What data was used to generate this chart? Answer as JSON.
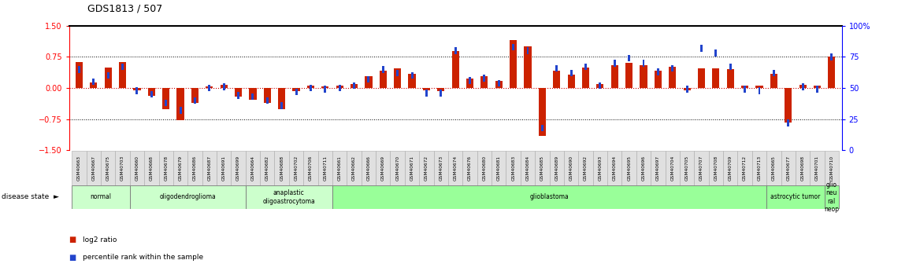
{
  "title": "GDS1813 / 507",
  "samples": [
    "GSM40663",
    "GSM40667",
    "GSM40675",
    "GSM40703",
    "GSM40660",
    "GSM40668",
    "GSM40678",
    "GSM40679",
    "GSM40686",
    "GSM40687",
    "GSM40691",
    "GSM40699",
    "GSM40664",
    "GSM40682",
    "GSM40688",
    "GSM40702",
    "GSM40706",
    "GSM40711",
    "GSM40661",
    "GSM40662",
    "GSM40666",
    "GSM40669",
    "GSM40670",
    "GSM40671",
    "GSM40672",
    "GSM40673",
    "GSM40674",
    "GSM40676",
    "GSM40680",
    "GSM40681",
    "GSM40683",
    "GSM40684",
    "GSM40685",
    "GSM40689",
    "GSM40690",
    "GSM40692",
    "GSM40693",
    "GSM40694",
    "GSM40695",
    "GSM40696",
    "GSM40697",
    "GSM40704",
    "GSM40705",
    "GSM40707",
    "GSM40708",
    "GSM40709",
    "GSM40712",
    "GSM40713",
    "GSM40665",
    "GSM40677",
    "GSM40698",
    "GSM40701",
    "GSM40710"
  ],
  "log2_ratio": [
    0.62,
    0.13,
    0.5,
    0.63,
    -0.05,
    -0.18,
    -0.5,
    -0.77,
    -0.35,
    0.04,
    0.08,
    -0.2,
    -0.28,
    -0.35,
    -0.5,
    -0.08,
    0.05,
    0.04,
    0.05,
    0.1,
    0.28,
    0.42,
    0.48,
    0.35,
    -0.05,
    -0.08,
    0.9,
    0.22,
    0.28,
    0.18,
    1.15,
    1.0,
    -1.15,
    0.42,
    0.32,
    0.5,
    0.1,
    0.55,
    0.6,
    0.55,
    0.42,
    0.52,
    -0.05,
    0.48,
    0.48,
    0.45,
    0.05,
    0.05,
    0.35,
    -0.82,
    0.08,
    0.05,
    0.75
  ],
  "percentile": [
    65,
    55,
    60,
    67,
    48,
    45,
    38,
    32,
    40,
    50,
    51,
    44,
    43,
    40,
    36,
    47,
    50,
    49,
    50,
    52,
    57,
    65,
    62,
    60,
    46,
    46,
    80,
    56,
    58,
    54,
    83,
    80,
    18,
    66,
    62,
    67,
    52,
    70,
    74,
    70,
    63,
    66,
    49,
    82,
    78,
    67,
    49,
    48,
    62,
    22,
    51,
    49,
    75
  ],
  "disease_groups": [
    {
      "label": "normal",
      "start": 0,
      "end": 4,
      "color": "#ccffcc"
    },
    {
      "label": "oligodendroglioma",
      "start": 4,
      "end": 12,
      "color": "#ccffcc"
    },
    {
      "label": "anaplastic\noligoastrocytoma",
      "start": 12,
      "end": 18,
      "color": "#ccffcc"
    },
    {
      "label": "glioblastoma",
      "start": 18,
      "end": 48,
      "color": "#99ff99"
    },
    {
      "label": "astrocytic tumor",
      "start": 48,
      "end": 52,
      "color": "#99ff99"
    },
    {
      "label": "glio\nneu\nral\nneop",
      "start": 52,
      "end": 53,
      "color": "#99ff99"
    }
  ],
  "ylim": [
    -1.5,
    1.5
  ],
  "yticks_left": [
    -1.5,
    -0.75,
    0,
    0.75,
    1.5
  ],
  "yticks_right_vals": [
    0,
    25,
    50,
    75,
    100
  ],
  "bar_color_red": "#cc2200",
  "bar_color_blue": "#2244cc",
  "zero_line_color": "#cc0000",
  "bg_color": "#ffffff",
  "bar_width": 0.5,
  "sq_size": 0.08
}
